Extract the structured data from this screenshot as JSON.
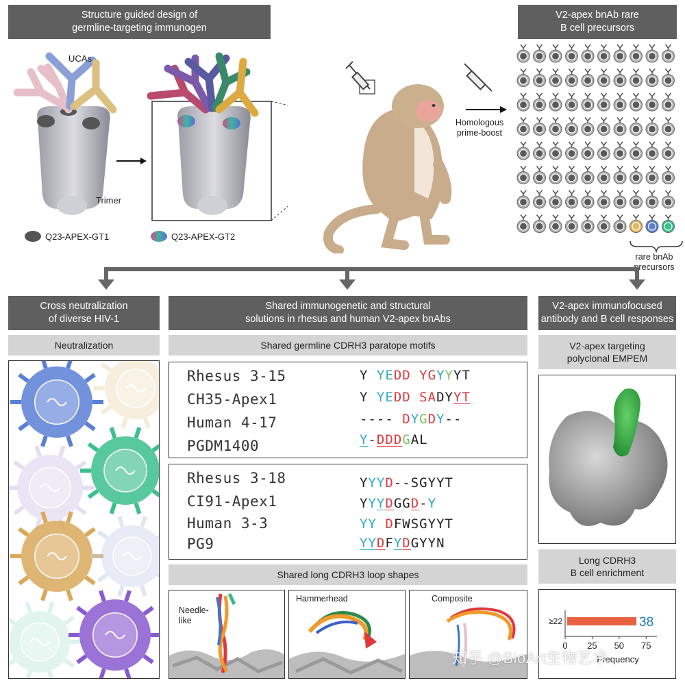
{
  "top_left": {
    "header": [
      "Structure guided design of",
      "germline-targeting immunogen"
    ],
    "ucas_label": "UCAs",
    "trimer_label": "Trimer",
    "legend": [
      {
        "label": "Q23-APEX-GT1",
        "color": "#555555"
      },
      {
        "label": "Q23-APEX-GT2",
        "color": "multicolor"
      }
    ]
  },
  "top_right": {
    "header": [
      "V2-apex bnAb rare",
      "B cell precursors"
    ],
    "arrow_label": [
      "Homologous",
      "prime-boost"
    ],
    "rare_label": [
      "rare bnAb",
      "precursors"
    ],
    "rare_colors": [
      "#e5b660",
      "#5a7fd6",
      "#3bbf8c"
    ]
  },
  "panel_left": {
    "header": [
      "Cross neutralization",
      "of diverse HIV-1"
    ],
    "subheader": "Neutralization"
  },
  "panel_mid": {
    "header": [
      "Shared immunogenetic and structural",
      "solutions in rhesus and human V2-apex bnAbs"
    ],
    "subheader1": "Shared germline CDRH3 paratope motifs",
    "group1": [
      {
        "name": "Rhesus 3-15",
        "seq": "Y YEDD YGYYYT"
      },
      {
        "name": "CH35-Apex1",
        "seq": "Y YEDD SADYYT"
      },
      {
        "name": "Human 4-17",
        "seq": "---- DYGDY--"
      },
      {
        "name": "PGDM1400",
        "seq": "Y-DDDGAL"
      }
    ],
    "group2": [
      {
        "name": "Rhesus 3-18",
        "seq": "YYYD--SGYYT"
      },
      {
        "name": "CI91-Apex1",
        "seq": "YYYDGGD-Y"
      },
      {
        "name": "Human 3-3",
        "seq": "YY DFWSGYYT"
      },
      {
        "name": "PG9",
        "seq": "YYDFYDGYYN"
      }
    ],
    "subheader2": "Shared long CDRH3 loop shapes",
    "shapes": [
      "Needle-like",
      "Hammerhead",
      "Composite"
    ]
  },
  "panel_right": {
    "header": [
      "V2-apex immunofocused",
      "antibody and B cell responses"
    ],
    "subheader1": [
      "V2-apex targeting",
      "polyclonal EMPEM"
    ],
    "subheader2": [
      "Long CDRH3",
      "B cell enrichment"
    ]
  },
  "chart_data": {
    "type": "bar",
    "categories": [
      "≥22"
    ],
    "values": [
      38
    ],
    "data_label": "38",
    "xlabel": "Frequency",
    "xticks": [
      "0",
      "25",
      "50",
      "75"
    ],
    "xlim": [
      0,
      85
    ],
    "bar_color": "#e8613e"
  },
  "watermark": "知乎 @BioArt生物艺术"
}
